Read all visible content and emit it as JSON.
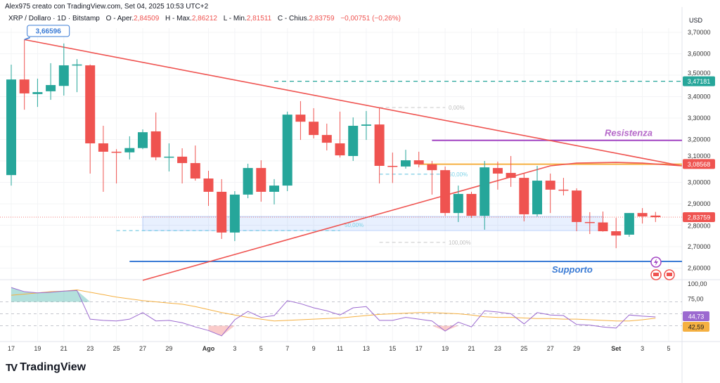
{
  "header": {
    "credit": "Alex975 creato con TradingView.com, Set 04, 2025 10:53 UTC+2",
    "symbol": "XRP / Dollaro · 1D · Bitstamp",
    "open_label": "O - Aper.",
    "open": "2,84509",
    "high_label": "H - Max.",
    "high": "2,86212",
    "low_label": "L - Min.",
    "low": "2,81511",
    "close_label": "C - Chius.",
    "close": "2,83759",
    "change": "−0,00751 (−0,26%)"
  },
  "branding": {
    "logo_text": "TradingView"
  },
  "colors": {
    "up": "#26a69a",
    "down": "#ef5350",
    "rsi": "#9c6ad0",
    "rsi_ma": "#f5b041",
    "support": "#3a7bd5",
    "resistance": "#a347c4",
    "target": "#26a69a"
  },
  "chart_data": {
    "type": "candlestick",
    "title": "XRP / Dollaro · 1D · Bitstamp",
    "currency": "USD",
    "ylim": [
      2.52,
      3.72
    ],
    "y_ticks": [
      {
        "value": 3.7,
        "label": "3,70000"
      },
      {
        "value": 3.6,
        "label": "3,60000"
      },
      {
        "value": 3.5,
        "label": "3,50000"
      },
      {
        "value": 3.4,
        "label": "3,40000"
      },
      {
        "value": 3.3,
        "label": "3,30000"
      },
      {
        "value": 3.2,
        "label": "3,20000"
      },
      {
        "value": 3.1,
        "label": "3,10000"
      },
      {
        "value": 3.0,
        "label": "3,00000"
      },
      {
        "value": 2.9,
        "label": "2,90000"
      },
      {
        "value": 2.8,
        "label": "2,80000"
      },
      {
        "value": 2.7,
        "label": "2,70000"
      },
      {
        "value": 2.6,
        "label": "2,60000"
      }
    ],
    "x_ticks": [
      {
        "date": "2025-07-17",
        "label": "17"
      },
      {
        "date": "2025-07-19",
        "label": "19"
      },
      {
        "date": "2025-07-21",
        "label": "21"
      },
      {
        "date": "2025-07-23",
        "label": "23"
      },
      {
        "date": "2025-07-25",
        "label": "25"
      },
      {
        "date": "2025-07-27",
        "label": "27"
      },
      {
        "date": "2025-07-29",
        "label": "29"
      },
      {
        "date": "2025-08-01",
        "label": "Ago",
        "bold": true
      },
      {
        "date": "2025-08-03",
        "label": "3"
      },
      {
        "date": "2025-08-05",
        "label": "5"
      },
      {
        "date": "2025-08-07",
        "label": "7"
      },
      {
        "date": "2025-08-09",
        "label": "9"
      },
      {
        "date": "2025-08-11",
        "label": "11"
      },
      {
        "date": "2025-08-13",
        "label": "13"
      },
      {
        "date": "2025-08-15",
        "label": "15"
      },
      {
        "date": "2025-08-17",
        "label": "17"
      },
      {
        "date": "2025-08-19",
        "label": "19"
      },
      {
        "date": "2025-08-21",
        "label": "21"
      },
      {
        "date": "2025-08-23",
        "label": "23"
      },
      {
        "date": "2025-08-25",
        "label": "25"
      },
      {
        "date": "2025-08-27",
        "label": "27"
      },
      {
        "date": "2025-08-29",
        "label": "29"
      },
      {
        "date": "2025-09-01",
        "label": "Set",
        "bold": true
      },
      {
        "date": "2025-09-03",
        "label": "3"
      },
      {
        "date": "2025-09-05",
        "label": "5"
      }
    ],
    "candles_columns": [
      "date",
      "open",
      "high",
      "low",
      "close"
    ],
    "candles": [
      [
        "2025-07-17",
        3.034,
        3.549,
        2.985,
        3.48
      ],
      [
        "2025-07-18",
        3.48,
        3.666,
        3.339,
        3.415
      ],
      [
        "2025-07-19",
        3.412,
        3.484,
        3.352,
        3.421
      ],
      [
        "2025-07-20",
        3.425,
        3.556,
        3.385,
        3.454
      ],
      [
        "2025-07-21",
        3.45,
        3.648,
        3.405,
        3.546
      ],
      [
        "2025-07-22",
        3.545,
        3.575,
        3.421,
        3.55
      ],
      [
        "2025-07-23",
        3.546,
        3.55,
        3.041,
        3.182
      ],
      [
        "2025-07-24",
        3.182,
        3.264,
        2.956,
        3.143
      ],
      [
        "2025-07-25",
        3.143,
        3.155,
        2.995,
        3.14
      ],
      [
        "2025-07-26",
        3.14,
        3.215,
        3.107,
        3.16
      ],
      [
        "2025-07-27",
        3.16,
        3.247,
        3.155,
        3.234
      ],
      [
        "2025-07-28",
        3.238,
        3.326,
        3.103,
        3.117
      ],
      [
        "2025-07-29",
        3.117,
        3.182,
        3.051,
        3.12
      ],
      [
        "2025-07-30",
        3.12,
        3.159,
        2.995,
        3.09
      ],
      [
        "2025-07-31",
        3.09,
        3.172,
        3.008,
        3.018
      ],
      [
        "2025-08-01",
        3.018,
        3.054,
        2.89,
        2.956
      ],
      [
        "2025-08-02",
        2.956,
        3.015,
        2.736,
        2.766
      ],
      [
        "2025-08-03",
        2.766,
        2.959,
        2.726,
        2.943
      ],
      [
        "2025-08-04",
        2.943,
        3.087,
        2.926,
        3.067
      ],
      [
        "2025-08-05",
        3.067,
        3.103,
        2.91,
        2.956
      ],
      [
        "2025-08-06",
        2.956,
        3.015,
        2.897,
        2.985
      ],
      [
        "2025-08-07",
        2.985,
        3.33,
        2.959,
        3.316
      ],
      [
        "2025-08-08",
        3.316,
        3.379,
        3.198,
        3.283
      ],
      [
        "2025-08-09",
        3.283,
        3.346,
        3.205,
        3.221
      ],
      [
        "2025-08-10",
        3.221,
        3.274,
        3.149,
        3.185
      ],
      [
        "2025-08-11",
        3.182,
        3.33,
        3.116,
        3.126
      ],
      [
        "2025-08-12",
        3.123,
        3.303,
        3.1,
        3.264
      ],
      [
        "2025-08-13",
        3.264,
        3.333,
        3.198,
        3.27
      ],
      [
        "2025-08-14",
        3.27,
        3.346,
        2.995,
        3.077
      ],
      [
        "2025-08-15",
        3.077,
        3.139,
        2.997,
        3.075
      ],
      [
        "2025-08-16",
        3.074,
        3.152,
        3.064,
        3.103
      ],
      [
        "2025-08-17",
        3.103,
        3.143,
        3.07,
        3.084
      ],
      [
        "2025-08-18",
        3.084,
        3.1,
        2.943,
        3.057
      ],
      [
        "2025-08-19",
        3.057,
        3.074,
        2.844,
        2.857
      ],
      [
        "2025-08-20",
        2.857,
        2.985,
        2.815,
        2.946
      ],
      [
        "2025-08-21",
        2.946,
        2.956,
        2.834,
        2.844
      ],
      [
        "2025-08-22",
        2.844,
        3.1,
        2.779,
        3.07
      ],
      [
        "2025-08-23",
        3.067,
        3.097,
        2.966,
        3.041
      ],
      [
        "2025-08-24",
        3.044,
        3.123,
        2.979,
        3.021
      ],
      [
        "2025-08-25",
        3.021,
        3.041,
        2.818,
        2.851
      ],
      [
        "2025-08-26",
        2.851,
        3.077,
        2.841,
        3.008
      ],
      [
        "2025-08-27",
        3.008,
        3.041,
        2.857,
        2.966
      ],
      [
        "2025-08-28",
        2.966,
        3.021,
        2.939,
        2.963
      ],
      [
        "2025-08-29",
        2.962,
        2.972,
        2.772,
        2.815
      ],
      [
        "2025-08-30",
        2.815,
        2.861,
        2.759,
        2.813
      ],
      [
        "2025-08-31",
        2.813,
        2.864,
        2.77,
        2.772
      ],
      [
        "2025-09-01",
        2.772,
        2.834,
        2.693,
        2.752
      ],
      [
        "2025-09-02",
        2.756,
        2.857,
        2.746,
        2.857
      ],
      [
        "2025-09-03",
        2.857,
        2.88,
        2.808,
        2.841
      ],
      [
        "2025-09-04",
        2.84509,
        2.86212,
        2.81511,
        2.83759
      ]
    ],
    "high_callout": {
      "date": "2025-07-18",
      "value": 3.66596,
      "label": "3,66596"
    },
    "price_tags": [
      {
        "value": 3.47181,
        "label": "3,47181",
        "color": "#26a69a"
      },
      {
        "value": 3.08568,
        "label": "3,08568",
        "color": "#ef5350"
      },
      {
        "value": 2.83759,
        "label": "2,83759",
        "color": "#ef5350"
      }
    ],
    "annotations": {
      "trendline_down": [
        [
          "2025-07-18",
          3.666
        ],
        [
          "2025-09-06",
          3.077
        ]
      ],
      "trendline_up": [
        [
          "2025-07-27",
          2.543
        ],
        [
          "2025-08-27",
          3.077
        ],
        [
          "2025-08-29",
          3.09
        ],
        [
          "2025-09-01",
          3.093
        ],
        [
          "2025-09-03",
          3.09
        ],
        [
          "2025-09-06",
          3.077
        ]
      ],
      "target_line": {
        "value": 3.47181,
        "from": "2025-08-06"
      },
      "resistance": {
        "value": 3.196,
        "from": "2025-08-18",
        "label": "Resistenza"
      },
      "orange_level": {
        "value": 3.085,
        "from": "2025-08-17"
      },
      "support": {
        "value": 2.631,
        "from": "2025-07-26",
        "label": "Supporto"
      },
      "zone": {
        "low": 2.775,
        "high": 2.841,
        "from": "2025-07-27",
        "to": "2025-08-31"
      },
      "fib_levels": [
        {
          "value": 3.349,
          "label": "0,00%",
          "from": "2025-08-14",
          "to": "2025-08-19"
        },
        {
          "value": 3.038,
          "label": "60,00%",
          "from": "2025-08-14",
          "to": "2025-08-19"
        },
        {
          "value": 2.72,
          "label": "100,00%",
          "from": "2025-08-14",
          "to": "2025-08-19"
        },
        {
          "value": 2.775,
          "label": "50,00%",
          "from": "2025-07-25",
          "to": "2025-08-11"
        }
      ]
    },
    "rsi": {
      "ylim": [
        0,
        100
      ],
      "y_ticks": [
        {
          "value": 100,
          "label": "100,00"
        },
        {
          "value": 75,
          "label": "75,00"
        },
        {
          "value": 50,
          "label": "50,00"
        },
        {
          "value": 25,
          "label": "25,00"
        }
      ],
      "bands": [
        70,
        50,
        30
      ],
      "values": [
        94,
        87,
        85,
        86,
        88,
        89,
        41,
        39,
        38,
        41,
        52,
        38,
        39,
        35,
        28,
        22,
        13,
        40,
        54,
        44,
        47,
        72,
        67,
        60,
        55,
        48,
        60,
        62,
        39,
        39,
        44,
        41,
        38,
        21,
        36,
        28,
        55,
        53,
        50,
        33,
        52,
        48,
        47,
        32,
        31,
        28,
        26,
        48,
        46,
        44.73
      ],
      "ma_values": [
        81,
        83,
        85,
        87,
        88,
        90,
        86,
        82,
        78,
        75,
        72,
        70,
        68,
        66,
        62,
        57,
        52,
        48,
        44,
        41,
        38,
        39,
        40,
        41,
        42,
        43,
        45,
        47,
        49,
        50,
        51,
        52,
        52,
        51,
        50,
        48,
        45,
        44,
        44,
        43,
        42,
        42,
        41,
        41,
        40,
        39,
        38,
        38,
        40,
        42.59
      ],
      "tag_rsi": "44,73",
      "tag_ma": "42,59"
    }
  }
}
